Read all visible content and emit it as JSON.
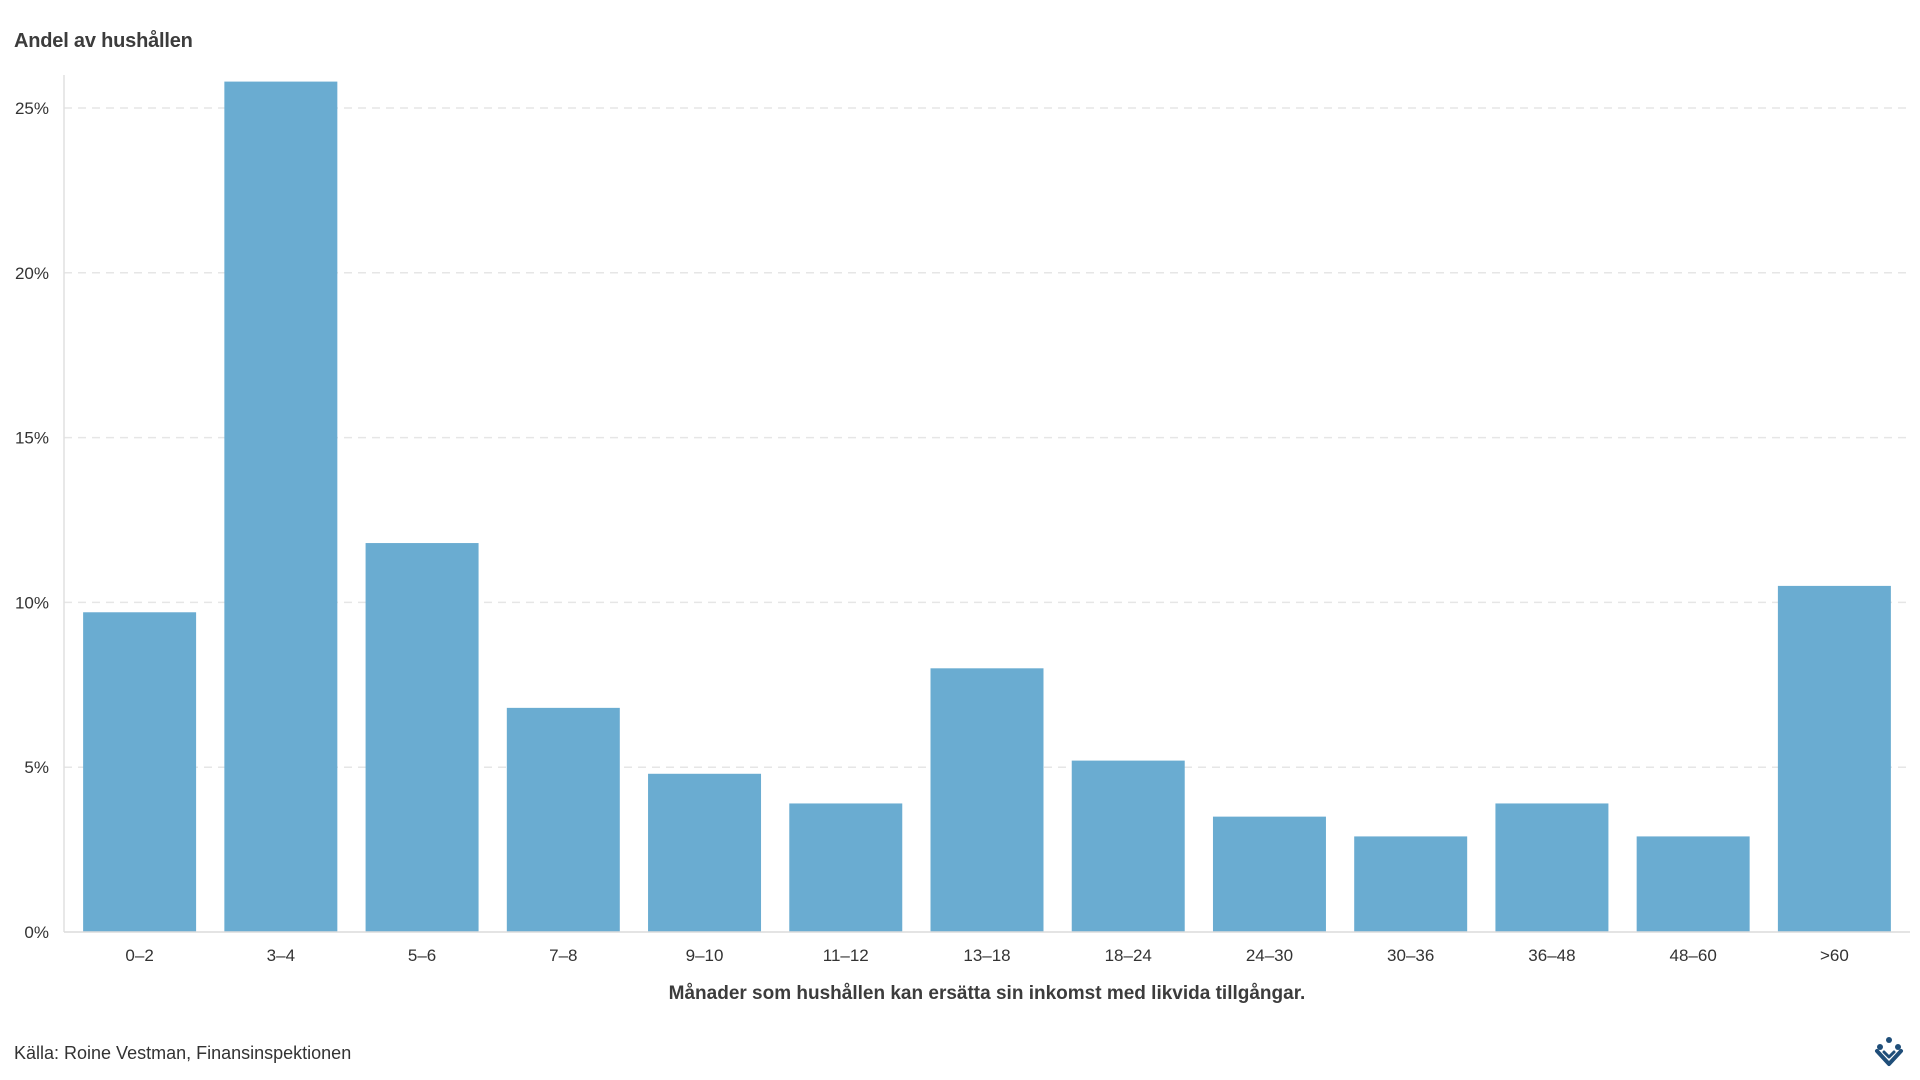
{
  "chart_data": {
    "type": "bar",
    "title": "",
    "ylabel": "Andel av hushållen",
    "xlabel": "Månader som hushållen kan ersätta sin inkomst med likvida tillgångar.",
    "categories": [
      "0–2",
      "3–4",
      "5–6",
      "7–8",
      "9–10",
      "11–12",
      "13–18",
      "18–24",
      "24–30",
      "30–36",
      "36–48",
      "48–60",
      ">60"
    ],
    "values": [
      9.7,
      25.8,
      11.8,
      6.8,
      4.8,
      3.9,
      8.0,
      5.2,
      3.5,
      2.9,
      3.9,
      2.9,
      10.5
    ],
    "ylim": [
      0,
      26
    ],
    "yticks": [
      0,
      5,
      10,
      15,
      20,
      25
    ],
    "ytick_labels": [
      "0%",
      "5%",
      "10%",
      "15%",
      "20%",
      "25%"
    ],
    "grid": true,
    "bar_color": "#6aacd1"
  },
  "source": "Källa: Roine Vestman, Finansinspektionen",
  "logo_icon": "fi-logo-icon",
  "colors": {
    "bar": "#6aacd1",
    "grid": "#e6e6e6",
    "logo": "#1f4e79"
  }
}
